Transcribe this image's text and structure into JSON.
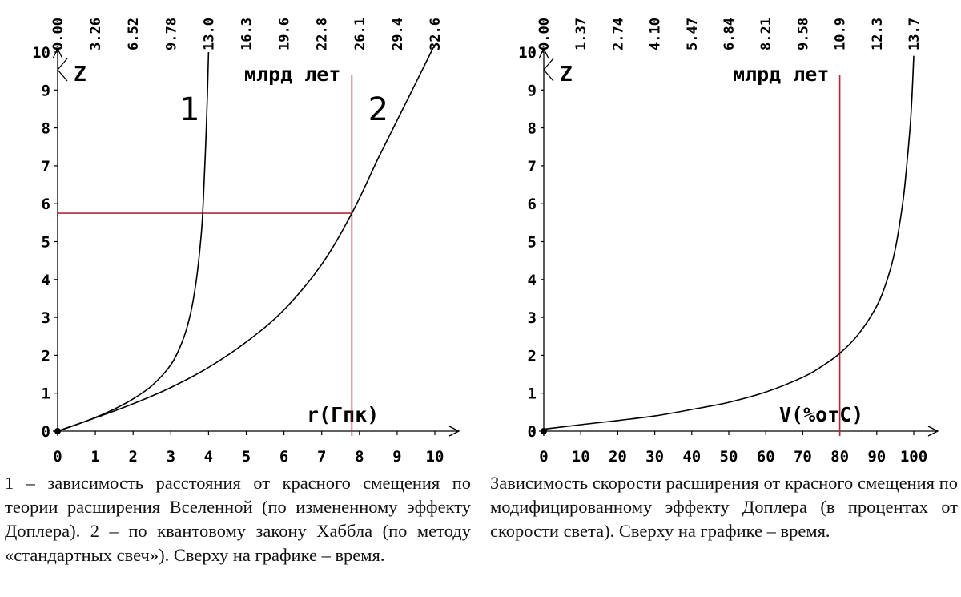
{
  "colors": {
    "axis": "#000000",
    "curve": "#000000",
    "marker": "#b0283a"
  },
  "chart_data": [
    {
      "type": "line",
      "xlabel": "r(Гпк)",
      "ylabel": "Z",
      "top_axis_label": "млрд лет",
      "xlim": [
        0,
        10
      ],
      "ylim": [
        0,
        10
      ],
      "x_ticks": [
        "0",
        "1",
        "2",
        "3",
        "4",
        "5",
        "6",
        "7",
        "8",
        "9",
        "10"
      ],
      "y_ticks": [
        "0",
        "1",
        "2",
        "3",
        "4",
        "5",
        "6",
        "7",
        "8",
        "9",
        "10"
      ],
      "top_ticks": [
        "0.00",
        "3.26",
        "6.52",
        "9.78",
        "13.0",
        "16.3",
        "19.6",
        "22.8",
        "26.1",
        "29.4",
        "32.6"
      ],
      "series": [
        {
          "name": "1",
          "x": [
            0,
            0.5,
            1.0,
            1.5,
            2.0,
            2.5,
            3.0,
            3.3,
            3.5,
            3.65,
            3.75,
            3.83,
            3.88,
            3.93,
            3.97,
            4.0
          ],
          "y": [
            0,
            0.17,
            0.36,
            0.58,
            0.85,
            1.2,
            1.75,
            2.35,
            3.0,
            3.8,
            4.6,
            5.5,
            6.5,
            7.7,
            8.9,
            10.0
          ]
        },
        {
          "name": "2",
          "x": [
            0,
            1,
            2,
            3,
            4,
            5,
            6,
            7,
            7.8,
            8.5,
            9,
            9.5,
            9.8,
            10
          ],
          "y": [
            0,
            0.35,
            0.72,
            1.15,
            1.68,
            2.35,
            3.2,
            4.4,
            5.75,
            7.2,
            8.2,
            9.2,
            9.8,
            10.2
          ]
        }
      ],
      "annotations": [
        {
          "text": "1",
          "x": 3.5,
          "y": 8.5
        },
        {
          "text": "2",
          "x": 8.5,
          "y": 8.5
        }
      ],
      "guides": {
        "x": 7.8,
        "y": 5.75
      },
      "grid": false
    },
    {
      "type": "line",
      "xlabel": "V(%отС)",
      "ylabel": "Z",
      "top_axis_label": "млрд лет",
      "xlim": [
        0,
        100
      ],
      "ylim": [
        0,
        10
      ],
      "x_ticks": [
        "0",
        "10",
        "20",
        "30",
        "40",
        "50",
        "60",
        "70",
        "80",
        "90",
        "100"
      ],
      "y_ticks": [
        "0",
        "1",
        "2",
        "3",
        "4",
        "5",
        "6",
        "7",
        "8",
        "9",
        "10"
      ],
      "top_ticks": [
        "0.00",
        "1.37",
        "2.74",
        "4.10",
        "5.47",
        "6.84",
        "8.21",
        "9.58",
        "10.9",
        "12.3",
        "13.7"
      ],
      "series": [
        {
          "name": "",
          "x": [
            0,
            10,
            20,
            30,
            40,
            50,
            60,
            70,
            75,
            80,
            85,
            90,
            93,
            95,
            97,
            98,
            99,
            99.5,
            100
          ],
          "y": [
            0.05,
            0.17,
            0.28,
            0.4,
            0.57,
            0.76,
            1.03,
            1.42,
            1.7,
            2.05,
            2.55,
            3.3,
            4.05,
            4.8,
            6.0,
            6.9,
            8.0,
            8.8,
            9.9
          ]
        }
      ],
      "guides": {
        "x": 80
      },
      "grid": false
    }
  ],
  "captions": {
    "left": "1 – зависимость расстояния от красного смещения по теории расширения Вселенной (по измененному эффекту Доплера). 2 – по квантовому закону Хаббла (по методу «стандартных свеч»). Сверху на графике – время.",
    "right": "Зависимость скорости расширения от красного смещения по модифицированному эффекту Доплера (в процентах от скорости света). Сверху на графике – время."
  }
}
